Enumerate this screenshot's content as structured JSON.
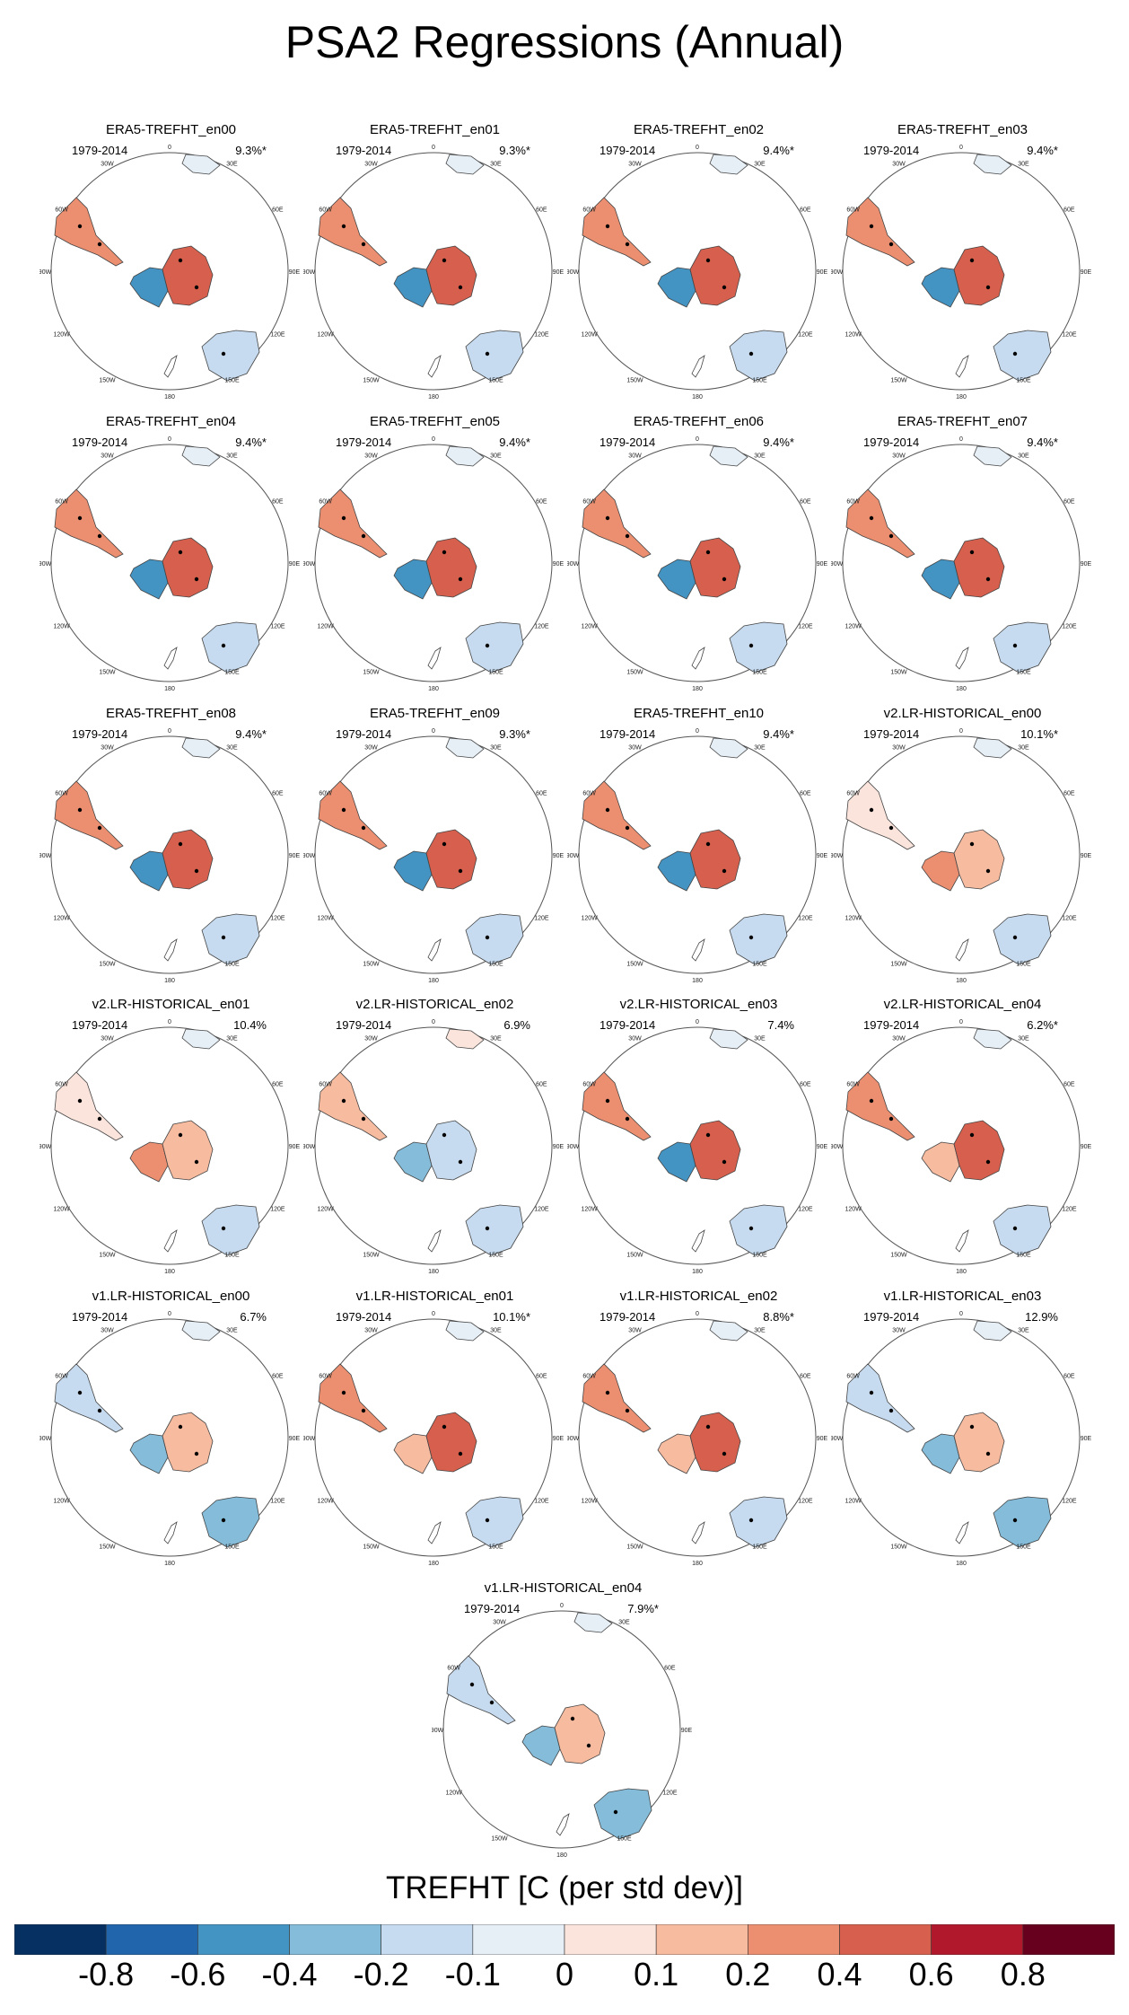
{
  "figure_title": "PSA2 Regressions (Annual)",
  "chart_data": {
    "type": "heatmap",
    "description": "Polar stereographic maps of TREFHT regression onto PSA2 index",
    "title": "PSA2 Regressions (Annual)",
    "colorbar": {
      "title": "TREFHT [C (per std dev)]",
      "tick_labels": [
        "-0.8",
        "-0.6",
        "-0.4",
        "-0.2",
        "-0.1",
        "0",
        "0.1",
        "0.2",
        "0.4",
        "0.6",
        "0.8"
      ],
      "colors": [
        "#053061",
        "#2166ac",
        "#4393c3",
        "#84bcd9",
        "#c6dbef",
        "#e6eff6",
        "#fbe4dc",
        "#f7bba0",
        "#ec8f70",
        "#d6604d",
        "#b2182b",
        "#67001f"
      ]
    },
    "map_labels": [
      "0",
      "30E",
      "60E",
      "90E",
      "120E",
      "150E",
      "180",
      "150W",
      "120W",
      "90W",
      "60W",
      "30W"
    ],
    "panels": [
      {
        "title": "ERA5-TREFHT_en00",
        "period": "1979-2014",
        "percent": "9.3%*",
        "pattern": "era5"
      },
      {
        "title": "ERA5-TREFHT_en01",
        "period": "1979-2014",
        "percent": "9.3%*",
        "pattern": "era5"
      },
      {
        "title": "ERA5-TREFHT_en02",
        "period": "1979-2014",
        "percent": "9.4%*",
        "pattern": "era5"
      },
      {
        "title": "ERA5-TREFHT_en03",
        "period": "1979-2014",
        "percent": "9.4%*",
        "pattern": "era5"
      },
      {
        "title": "ERA5-TREFHT_en04",
        "period": "1979-2014",
        "percent": "9.4%*",
        "pattern": "era5"
      },
      {
        "title": "ERA5-TREFHT_en05",
        "period": "1979-2014",
        "percent": "9.4%*",
        "pattern": "era5"
      },
      {
        "title": "ERA5-TREFHT_en06",
        "period": "1979-2014",
        "percent": "9.4%*",
        "pattern": "era5"
      },
      {
        "title": "ERA5-TREFHT_en07",
        "period": "1979-2014",
        "percent": "9.4%*",
        "pattern": "era5"
      },
      {
        "title": "ERA5-TREFHT_en08",
        "period": "1979-2014",
        "percent": "9.4%*",
        "pattern": "era5"
      },
      {
        "title": "ERA5-TREFHT_en09",
        "period": "1979-2014",
        "percent": "9.3%*",
        "pattern": "era5"
      },
      {
        "title": "ERA5-TREFHT_en10",
        "period": "1979-2014",
        "percent": "9.4%*",
        "pattern": "era5"
      },
      {
        "title": "v2.LR-HISTORICAL_en00",
        "period": "1979-2014",
        "percent": "10.1%*",
        "pattern": "weakwarm"
      },
      {
        "title": "v2.LR-HISTORICAL_en01",
        "period": "1979-2014",
        "percent": "10.4%",
        "pattern": "weakwarm"
      },
      {
        "title": "v2.LR-HISTORICAL_en02",
        "period": "1979-2014",
        "percent": "6.9%",
        "pattern": "cool"
      },
      {
        "title": "v2.LR-HISTORICAL_en03",
        "period": "1979-2014",
        "percent": "7.4%",
        "pattern": "era5"
      },
      {
        "title": "v2.LR-HISTORICAL_en04",
        "period": "1979-2014",
        "percent": "6.2%*",
        "pattern": "warm"
      },
      {
        "title": "v1.LR-HISTORICAL_en00",
        "period": "1979-2014",
        "percent": "6.7%",
        "pattern": "mixed"
      },
      {
        "title": "v1.LR-HISTORICAL_en01",
        "period": "1979-2014",
        "percent": "10.1%*",
        "pattern": "warm"
      },
      {
        "title": "v1.LR-HISTORICAL_en02",
        "period": "1979-2014",
        "percent": "8.8%*",
        "pattern": "warm"
      },
      {
        "title": "v1.LR-HISTORICAL_en03",
        "period": "1979-2014",
        "percent": "12.9%",
        "pattern": "mixed"
      },
      {
        "title": "v1.LR-HISTORICAL_en04",
        "period": "1979-2014",
        "percent": "7.9%*",
        "pattern": "mixed"
      }
    ]
  }
}
